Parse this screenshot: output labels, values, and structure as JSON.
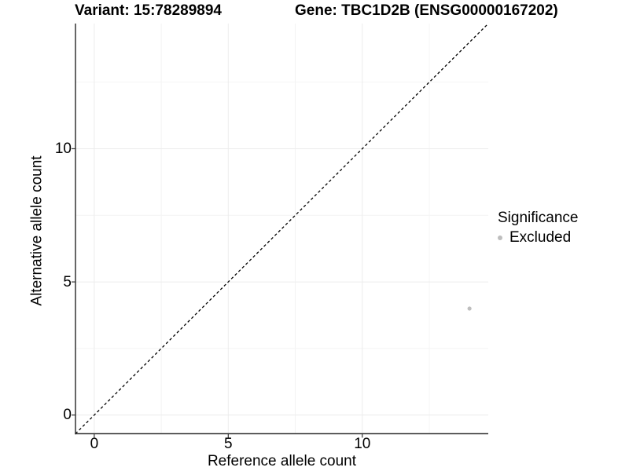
{
  "titles": {
    "variant": "Variant: 15:78289894",
    "gene": "Gene: TBC1D2B (ENSG00000167202)"
  },
  "chart_data": {
    "type": "scatter",
    "xlabel": "Reference allele count",
    "ylabel": "Alternative allele count",
    "xlim": [
      -0.7,
      14.7
    ],
    "ylim": [
      -0.7,
      14.7
    ],
    "xticks": [
      0,
      5,
      10
    ],
    "yticks": [
      0,
      5,
      10
    ],
    "minor_ticks": [
      2.5,
      7.5,
      12.5
    ],
    "grid": true,
    "points": [
      {
        "x": 14,
        "y": 4,
        "series": "Excluded"
      }
    ],
    "identity_line": {
      "slope": 1,
      "intercept": 0,
      "style": "dashed",
      "color": "#000000"
    },
    "legend": {
      "title": "Significance",
      "position": "right",
      "entries": [
        {
          "label": "Excluded",
          "color": "#bebebe"
        }
      ]
    }
  },
  "colors": {
    "background": "#ffffff",
    "text": "#000000",
    "axis_line": "#333333",
    "tick_mark": "#333333",
    "grid_major": "#ececec",
    "grid_minor": "#f4f4f4",
    "point": "#bebebe"
  }
}
